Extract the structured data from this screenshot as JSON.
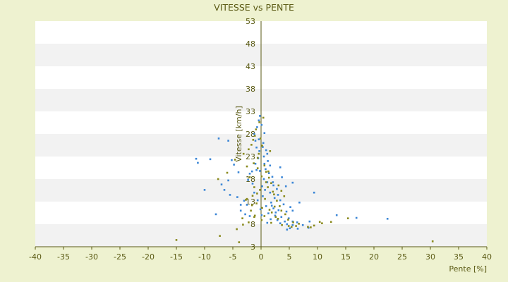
{
  "chart_data": {
    "type": "scatter",
    "title": "VITESSE vs PENTE",
    "xlabel": "Pente [%]",
    "ylabel": "Vitesse [km/h]",
    "xlim": [
      -40,
      40
    ],
    "ylim": [
      3,
      53
    ],
    "x_ticks": [
      "-40",
      "-35",
      "-30",
      "-25",
      "-20",
      "-15",
      "-10",
      "-5",
      "0",
      "5",
      "10",
      "15",
      "20",
      "25",
      "30",
      "35",
      "40"
    ],
    "y_ticks": [
      "3",
      "8",
      "13",
      "18",
      "23",
      "28",
      "33",
      "38",
      "43",
      "48",
      "53"
    ],
    "grid": "alternating horizontal bands",
    "legend": "none",
    "colors": {
      "background": "#eef2d0",
      "band_white": "#ffffff",
      "band_gray": "#f2f2f2",
      "axis": "#5a5a14",
      "text": "#5a5a14",
      "series_blue": "#3b86d6",
      "series_olive": "#8a8a1e"
    },
    "series": [
      {
        "color": "#3b86d6",
        "points": [
          [
            -7.5,
            27
          ],
          [
            -5.8,
            26.5
          ],
          [
            -11.5,
            22.5
          ],
          [
            -11.2,
            21.6
          ],
          [
            -9,
            22.4
          ],
          [
            -5.2,
            22.2
          ],
          [
            -4.8,
            21.2
          ],
          [
            -4,
            19.5
          ],
          [
            -5.8,
            17.7
          ],
          [
            -7,
            16.8
          ],
          [
            -10,
            15.6
          ],
          [
            -6.5,
            15.6
          ],
          [
            -5.5,
            14.5
          ],
          [
            -4.2,
            14
          ],
          [
            -3,
            13.2
          ],
          [
            -2.5,
            12.3
          ],
          [
            -3.6,
            12.3
          ],
          [
            -3.6,
            11
          ],
          [
            -2.8,
            10.2
          ],
          [
            -2,
            9.8
          ],
          [
            -1.2,
            15
          ],
          [
            -1.5,
            17
          ],
          [
            -2,
            19.2
          ],
          [
            -1,
            21.4
          ],
          [
            -0.8,
            20
          ],
          [
            -0.5,
            22.6
          ],
          [
            -0.3,
            24.2
          ],
          [
            -0.8,
            25
          ],
          [
            -1,
            26.5
          ],
          [
            -1.2,
            28
          ],
          [
            -0.7,
            29.5
          ],
          [
            -0.4,
            31
          ],
          [
            -0.2,
            32
          ],
          [
            0.1,
            30
          ],
          [
            0.6,
            28.2
          ],
          [
            0.4,
            26
          ],
          [
            0.9,
            24.4
          ],
          [
            0.5,
            23
          ],
          [
            1.2,
            22
          ],
          [
            1.6,
            21
          ],
          [
            0.8,
            20.2
          ],
          [
            1.4,
            19.3
          ],
          [
            2,
            18.5
          ],
          [
            0.5,
            18
          ],
          [
            1.1,
            17.3
          ],
          [
            2.2,
            16.6
          ],
          [
            2.8,
            15.8
          ],
          [
            1.6,
            15
          ],
          [
            3,
            14.5
          ],
          [
            0.3,
            14.2
          ],
          [
            2.4,
            13.8
          ],
          [
            3.4,
            13.3
          ],
          [
            1.8,
            12.8
          ],
          [
            4,
            12.4
          ],
          [
            0.9,
            12
          ],
          [
            2.2,
            11.5
          ],
          [
            3.1,
            11.1
          ],
          [
            4.5,
            10.8
          ],
          [
            1.3,
            10.4
          ],
          [
            0.1,
            10
          ],
          [
            2.5,
            9.9
          ],
          [
            3.6,
            9.6
          ],
          [
            4.9,
            9.3
          ],
          [
            1.7,
            9.1
          ],
          [
            2.9,
            8.9
          ],
          [
            4.2,
            8.6
          ],
          [
            5.6,
            8.6
          ],
          [
            1.1,
            8.3
          ],
          [
            3.4,
            8.2
          ],
          [
            4.6,
            8
          ],
          [
            5.6,
            7.8
          ],
          [
            6.4,
            8.4
          ],
          [
            7.4,
            7.8
          ],
          [
            8.4,
            7.2
          ],
          [
            5.1,
            7.1
          ],
          [
            6.5,
            7
          ],
          [
            4.6,
            6.8
          ],
          [
            5.2,
            11.8
          ],
          [
            5.6,
            11
          ],
          [
            6.8,
            12.8
          ],
          [
            5.6,
            17.2
          ],
          [
            4.4,
            16.4
          ],
          [
            3.4,
            20.6
          ],
          [
            9.4,
            15
          ],
          [
            13.4,
            10
          ],
          [
            16.9,
            9.4
          ],
          [
            22.4,
            9.2
          ],
          [
            -0.2,
            19.8
          ],
          [
            -1.6,
            19.7
          ],
          [
            0.2,
            16.4
          ],
          [
            0.7,
            15.6
          ],
          [
            -0.6,
            13.3
          ],
          [
            1.9,
            12.1
          ],
          [
            -0.1,
            11.3
          ],
          [
            2.6,
            10.6
          ],
          [
            8.6,
            8.6
          ],
          [
            -8,
            10.2
          ],
          [
            0.3,
            25.1
          ],
          [
            -0.4,
            26.8
          ],
          [
            1.1,
            23.6
          ],
          [
            2.1,
            17.3
          ],
          [
            -2.3,
            17.8
          ],
          [
            0.6,
            21.4
          ],
          [
            3.7,
            18.4
          ]
        ]
      },
      {
        "color": "#8a8a1e",
        "points": [
          [
            -15,
            4.5
          ],
          [
            -7.3,
            5.4
          ],
          [
            -4.3,
            6.9
          ],
          [
            -3.2,
            7.9
          ],
          [
            -2.2,
            8.4
          ],
          [
            -1.2,
            9.6
          ],
          [
            -3.9,
            4
          ],
          [
            -7.6,
            18
          ],
          [
            -6,
            19.4
          ],
          [
            -4.6,
            22.3
          ],
          [
            -3.1,
            23.6
          ],
          [
            -2.2,
            24.6
          ],
          [
            -1.7,
            25.6
          ],
          [
            -1.4,
            26.7
          ],
          [
            -1.1,
            27.6
          ],
          [
            -0.9,
            29
          ],
          [
            -0.3,
            30.6
          ],
          [
            0.4,
            31.6
          ],
          [
            -0.6,
            22.7
          ],
          [
            0.6,
            21
          ],
          [
            0.9,
            19.6
          ],
          [
            1.4,
            18.3
          ],
          [
            1.8,
            17.1
          ],
          [
            -1.2,
            16.2
          ],
          [
            2.3,
            14.6
          ],
          [
            -2.5,
            13.6
          ],
          [
            2.8,
            13.2
          ],
          [
            -0.8,
            12.6
          ],
          [
            3.3,
            12
          ],
          [
            0.2,
            11.6
          ],
          [
            3.6,
            11
          ],
          [
            1.9,
            10.6
          ],
          [
            4.3,
            10.2
          ],
          [
            0.6,
            9.8
          ],
          [
            3,
            9.2
          ],
          [
            4.8,
            9
          ],
          [
            5.7,
            8.4
          ],
          [
            6.7,
            8.1
          ],
          [
            3.7,
            7.8
          ],
          [
            4.9,
            7.6
          ],
          [
            5.4,
            7.4
          ],
          [
            6.2,
            7.6
          ],
          [
            8.3,
            7.4
          ],
          [
            8.8,
            7.3
          ],
          [
            9.4,
            7.7
          ],
          [
            10.4,
            8.5
          ],
          [
            10.8,
            8.2
          ],
          [
            12.4,
            8.5
          ],
          [
            15.4,
            9.3
          ],
          [
            -0.2,
            15.6
          ],
          [
            -1.3,
            21.5
          ],
          [
            -0.4,
            23.6
          ],
          [
            0.2,
            25.4
          ],
          [
            -0.6,
            20.4
          ],
          [
            1.6,
            24.2
          ],
          [
            -2.5,
            20.8
          ],
          [
            0.1,
            18.6
          ],
          [
            1.2,
            16.2
          ],
          [
            2.1,
            15.2
          ],
          [
            3.1,
            16.6
          ],
          [
            3.6,
            15.4
          ],
          [
            -1.6,
            12.2
          ],
          [
            0.7,
            13.6
          ],
          [
            1.5,
            11.2
          ],
          [
            2.6,
            9.6
          ],
          [
            1.8,
            8.3
          ],
          [
            0.1,
            8.9
          ],
          [
            -1.1,
            9.9
          ],
          [
            -1.8,
            11
          ],
          [
            4.1,
            14.2
          ],
          [
            -3.3,
            9.3
          ],
          [
            -2.7,
            13.4
          ],
          [
            -1.5,
            14.3
          ],
          [
            30.4,
            4.2
          ],
          [
            -0.1,
            27
          ],
          [
            1.3,
            19.7
          ],
          [
            -2,
            18.4
          ],
          [
            2.4,
            11.9
          ],
          [
            -0.7,
            14.8
          ],
          [
            0.9,
            17.3
          ]
        ]
      }
    ]
  }
}
